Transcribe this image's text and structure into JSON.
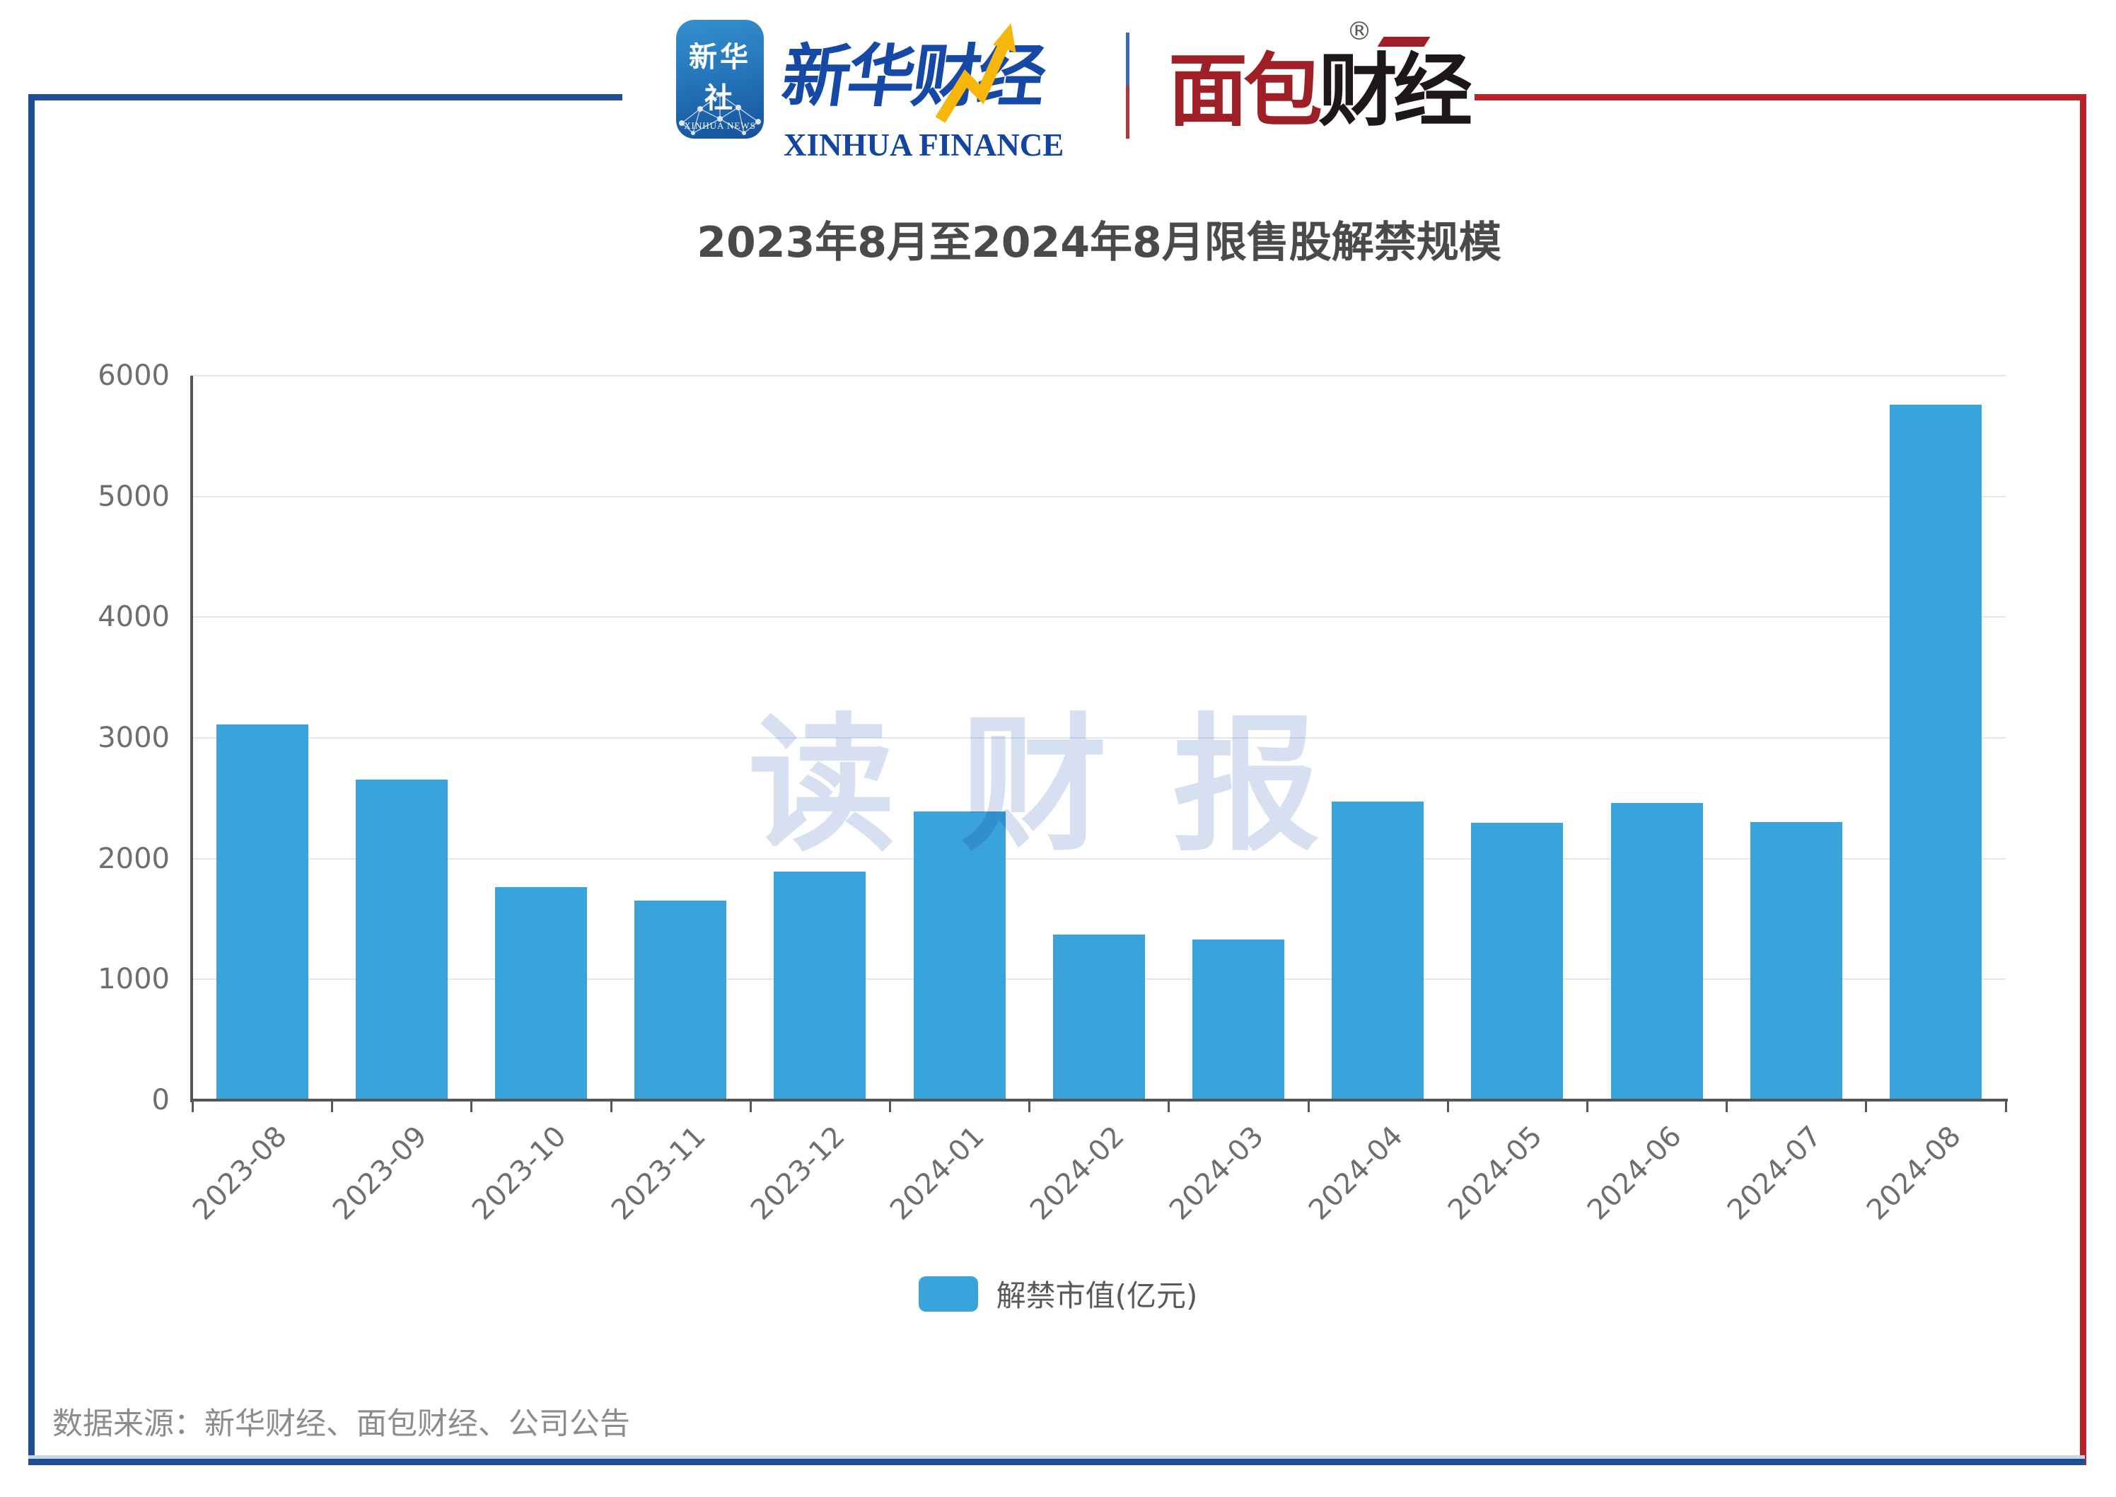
{
  "header": {
    "news_icon": {
      "cn": "新华社",
      "en": "XINHUA NEWS"
    },
    "finance_logo": {
      "cn": "新华财经",
      "en": "XINHUA FINANCE"
    },
    "bread_logo": {
      "cn_red": "面包",
      "cn_black": "财经",
      "reg": "®"
    }
  },
  "annotations": {
    "watermark": "读财报",
    "source_note": "数据来源：新华财经、面包财经、公司公告"
  },
  "colors": {
    "bar": "#3aa3dc",
    "grid": "#e2e7f3",
    "axis": "#565656",
    "title_text": "#4a4a4a",
    "tick_text": "#6e6e6e",
    "legend_text": "#595959",
    "source_text": "#8c8c8c",
    "watermark_text": "#d7e0f0",
    "frame_blue": "#1f4e96",
    "frame_red": "#bd2027",
    "frame_light_strip": "#c9d3e4"
  },
  "chart_data": {
    "type": "bar",
    "title": "2023年8月至2024年8月限售股解禁规模",
    "categories": [
      "2023-08",
      "2023-09",
      "2023-10",
      "2023-11",
      "2023-12",
      "2024-01",
      "2024-02",
      "2024-03",
      "2024-04",
      "2024-05",
      "2024-06",
      "2024-07",
      "2024-08"
    ],
    "series": [
      {
        "name": "解禁市值(亿元)",
        "values": [
          3110,
          2655,
          1765,
          1655,
          1895,
          2390,
          1370,
          1330,
          2470,
          2295,
          2460,
          2300,
          5760
        ]
      }
    ],
    "xlabel": "",
    "ylabel": "",
    "ylim": [
      0,
      6000
    ],
    "yticks": [
      0,
      1000,
      2000,
      3000,
      4000,
      5000,
      6000
    ],
    "grid": true,
    "legend_position": "bottom",
    "x_tick_label_rotation_deg": 45
  }
}
